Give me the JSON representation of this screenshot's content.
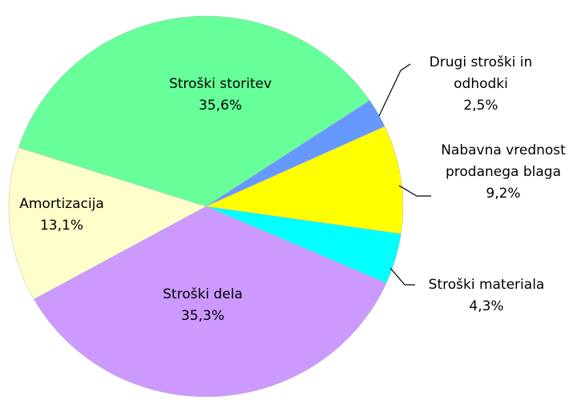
{
  "chart_data": {
    "type": "pie",
    "categories": [
      "Stroški storitev",
      "Drugi stroški in odhodki",
      "Nabavna vrednost prodanega blaga",
      "Stroški materiala",
      "Stroški dela",
      "Amortizacija"
    ],
    "values": [
      35.6,
      2.5,
      9.2,
      4.3,
      35.3,
      13.1
    ],
    "value_labels": [
      "35,6%",
      "2,5%",
      "9,2%",
      "4,3%",
      "35,3%",
      "13,1%"
    ],
    "colors": [
      "#66ff99",
      "#6699ff",
      "#ffff00",
      "#00ffff",
      "#cc99ff",
      "#ffffcc"
    ]
  }
}
